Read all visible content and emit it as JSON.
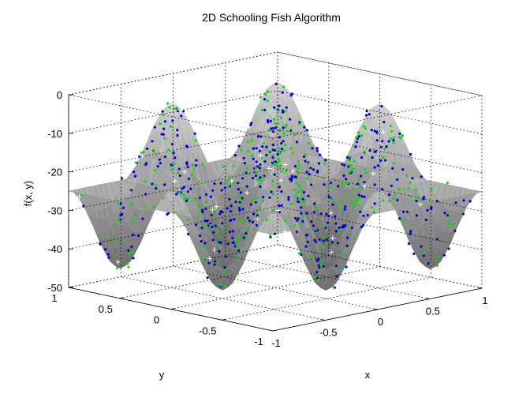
{
  "chart_data": {
    "type": "surface3d_scatter",
    "title": "2D Schooling Fish Algorithm",
    "xlabel": "x",
    "ylabel": "y",
    "zlabel": "f(x, y)",
    "xlim": [
      -1,
      1
    ],
    "ylim": [
      -1,
      1
    ],
    "zlim": [
      -50,
      0
    ],
    "x_ticks": [
      "-1",
      "-0.5",
      "0",
      "0.5",
      "1"
    ],
    "y_ticks": [
      "-1",
      "-0.5",
      "0",
      "0.5",
      "1"
    ],
    "z_ticks": [
      "0",
      "-10",
      "-20",
      "-30",
      "-40",
      "-50"
    ],
    "x_tick_values": [
      -1,
      -0.5,
      0,
      0.5,
      1
    ],
    "y_tick_values": [
      -1,
      -0.5,
      0,
      0.5,
      1
    ],
    "z_tick_values": [
      0,
      -10,
      -20,
      -30,
      -40,
      -50
    ],
    "grid": true,
    "box": "dotted",
    "surface": {
      "colormap": "gray",
      "alpha": 0.45,
      "function": "f(x,y) = 20*sin(2*pi*x)*sin(2*pi*y) - 25"
    },
    "series": [
      {
        "color": "#0000cc",
        "marker": "dot",
        "count": 420
      },
      {
        "color": "#00dd00",
        "marker": "dot",
        "count": 260
      },
      {
        "color": "#ffffff",
        "marker": "plus",
        "count": 30
      }
    ]
  }
}
